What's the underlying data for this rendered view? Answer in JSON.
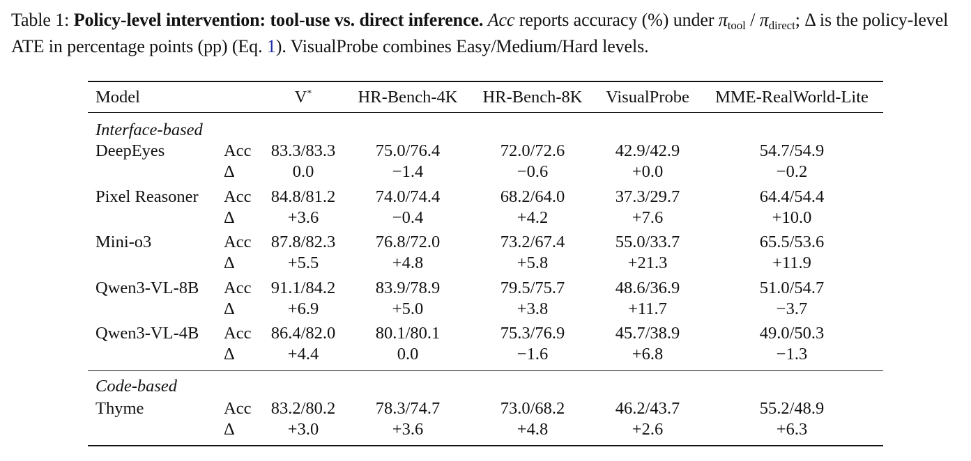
{
  "caption": {
    "label": "Table 1: ",
    "bold": "Policy-level intervention: tool-use vs. direct inference.",
    "acc_word": "Acc",
    "text1": " reports accuracy (%) under ",
    "pi": "π",
    "sub_tool": "tool",
    "slash": " / ",
    "sub_direct": "direct",
    "text2": "; Δ is the policy-level ATE in percentage points (pp) (Eq. ",
    "eq_ref": "1",
    "text3": "). VisualProbe combines Easy/Medium/Hard levels."
  },
  "table": {
    "headers": {
      "model": "Model",
      "v": "V",
      "v_sup": "*",
      "hr4k": "HR-Bench-4K",
      "hr8k": "HR-Bench-8K",
      "visualprobe": "VisualProbe",
      "mme": "MME-RealWorld-Lite"
    },
    "metric_labels": {
      "acc": "Acc",
      "delta": "Δ"
    },
    "groups": [
      {
        "name": "Interface-based",
        "models": [
          {
            "name": "DeepEyes",
            "acc": [
              "83.3/83.3",
              "75.0/76.4",
              "72.0/72.6",
              "42.9/42.9",
              "54.7/54.9"
            ],
            "delta": [
              "0.0",
              "−1.4",
              "−0.6",
              "+0.0",
              "−0.2"
            ]
          },
          {
            "name": "Pixel Reasoner",
            "acc": [
              "84.8/81.2",
              "74.0/74.4",
              "68.2/64.0",
              "37.3/29.7",
              "64.4/54.4"
            ],
            "delta": [
              "+3.6",
              "−0.4",
              "+4.2",
              "+7.6",
              "+10.0"
            ]
          },
          {
            "name": "Mini-o3",
            "acc": [
              "87.8/82.3",
              "76.8/72.0",
              "73.2/67.4",
              "55.0/33.7",
              "65.5/53.6"
            ],
            "delta": [
              "+5.5",
              "+4.8",
              "+5.8",
              "+21.3",
              "+11.9"
            ]
          },
          {
            "name": "Qwen3-VL-8B",
            "acc": [
              "91.1/84.2",
              "83.9/78.9",
              "79.5/75.7",
              "48.6/36.9",
              "51.0/54.7"
            ],
            "delta": [
              "+6.9",
              "+5.0",
              "+3.8",
              "+11.7",
              "−3.7"
            ]
          },
          {
            "name": "Qwen3-VL-4B",
            "acc": [
              "86.4/82.0",
              "80.1/80.1",
              "75.3/76.9",
              "45.7/38.9",
              "49.0/50.3"
            ],
            "delta": [
              "+4.4",
              "0.0",
              "−1.6",
              "+6.8",
              "−1.3"
            ]
          }
        ]
      },
      {
        "name": "Code-based",
        "models": [
          {
            "name": "Thyme",
            "acc": [
              "83.2/80.2",
              "78.3/74.7",
              "73.0/68.2",
              "46.2/43.7",
              "55.2/48.9"
            ],
            "delta": [
              "+3.0",
              "+3.6",
              "+4.8",
              "+2.6",
              "+6.3"
            ]
          }
        ]
      }
    ]
  }
}
